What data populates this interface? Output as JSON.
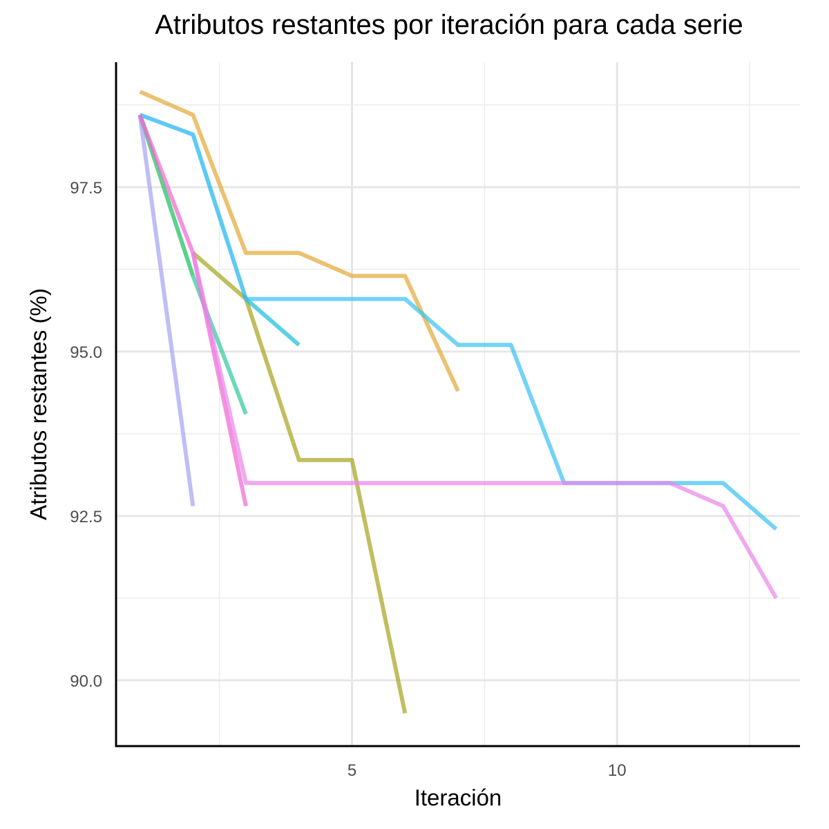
{
  "chart_data": {
    "type": "line",
    "title": "Atributos restantes por iteración para cada serie",
    "xlabel": "Iteración",
    "ylabel": "Atributos restantes (%)",
    "xlim": [
      0.55,
      13.45
    ],
    "ylim": [
      89.0,
      99.4
    ],
    "x_ticks": [
      5,
      10
    ],
    "x_tick_labels": [
      "5",
      "10"
    ],
    "y_ticks": [
      90.0,
      92.5,
      95.0,
      97.5
    ],
    "y_tick_labels": [
      "90.0",
      "92.5",
      "95.0",
      "97.5"
    ],
    "grid": true,
    "legend": "none",
    "series": [
      {
        "color": "#E3AA3A",
        "x": [
          1,
          2,
          3,
          4,
          5,
          6,
          7
        ],
        "y": [
          98.95,
          98.6,
          96.5,
          96.5,
          96.15,
          96.15,
          94.4
        ]
      },
      {
        "color": "#A9A521",
        "x": [
          2,
          3,
          4,
          5,
          6
        ],
        "y": [
          96.5,
          95.8,
          93.35,
          93.35,
          89.5
        ]
      },
      {
        "color": "#1FBF5F",
        "x": [
          1,
          2
        ],
        "y": [
          98.6,
          96.15
        ]
      },
      {
        "color": "#34C9A0",
        "x": [
          2,
          3
        ],
        "y": [
          96.15,
          94.05
        ]
      },
      {
        "color": "#1DBFDA",
        "x": [
          3,
          4
        ],
        "y": [
          95.8,
          95.1
        ]
      },
      {
        "color": "#1FB6EE",
        "x": [
          1,
          2,
          3
        ],
        "y": [
          98.6,
          98.3,
          95.8
        ]
      },
      {
        "color": "#3DC2F2",
        "x": [
          3,
          4,
          5,
          6,
          7,
          8,
          9,
          10,
          11,
          12,
          13
        ],
        "y": [
          95.8,
          95.8,
          95.8,
          95.8,
          95.1,
          95.1,
          93.0,
          93.0,
          93.0,
          93.0,
          92.3
        ]
      },
      {
        "color": "#A7A3F4",
        "x": [
          1,
          2
        ],
        "y": [
          98.6,
          92.65
        ]
      },
      {
        "color": "#F06AD0",
        "x": [
          1,
          2,
          3
        ],
        "y": [
          98.6,
          96.5,
          92.65
        ]
      },
      {
        "color": "#EA86EA",
        "x": [
          2,
          3,
          4,
          5,
          6,
          7,
          8,
          9,
          10,
          11,
          12,
          13
        ],
        "y": [
          96.5,
          93.0,
          93.0,
          93.0,
          93.0,
          93.0,
          93.0,
          93.0,
          93.0,
          93.0,
          92.65,
          91.25
        ]
      }
    ]
  }
}
